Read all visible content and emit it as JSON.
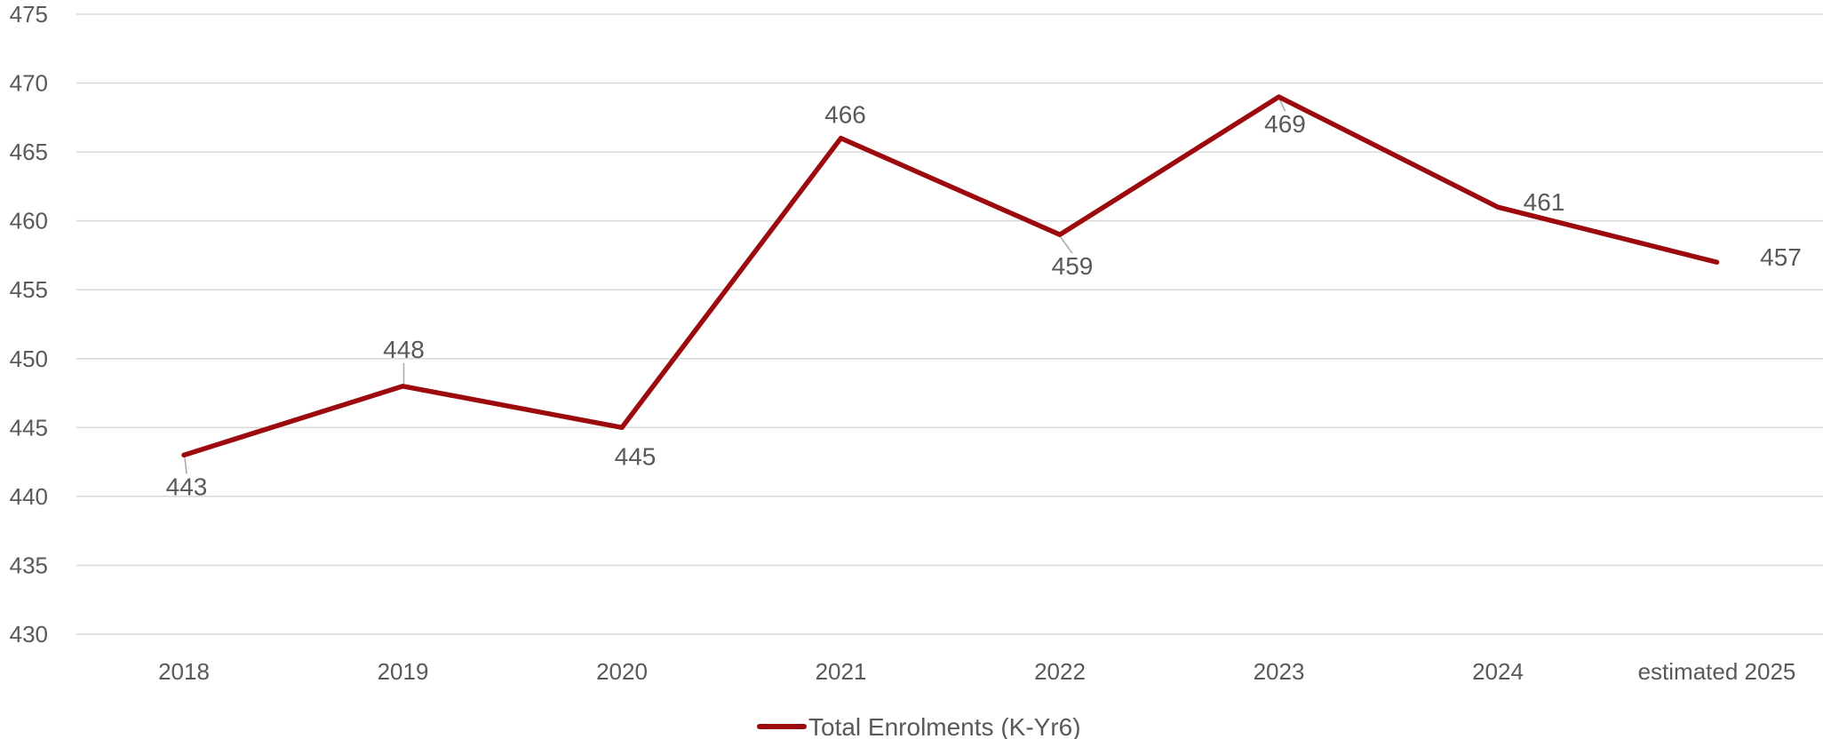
{
  "chart_data": {
    "type": "line",
    "categories": [
      "2018",
      "2019",
      "2020",
      "2021",
      "2022",
      "2023",
      "2024",
      "estimated 2025"
    ],
    "series": [
      {
        "name": "Total Enrolments (K-Yr6)",
        "values": [
          443,
          448,
          445,
          466,
          459,
          469,
          461,
          457
        ],
        "color": "#9c0a0e"
      }
    ],
    "y_ticks": [
      "475",
      "470",
      "465",
      "460",
      "455",
      "450",
      "445",
      "440",
      "435",
      "430"
    ],
    "ylim": [
      430,
      475
    ],
    "grid": true,
    "legend_position": "bottom",
    "data_labels": true
  }
}
